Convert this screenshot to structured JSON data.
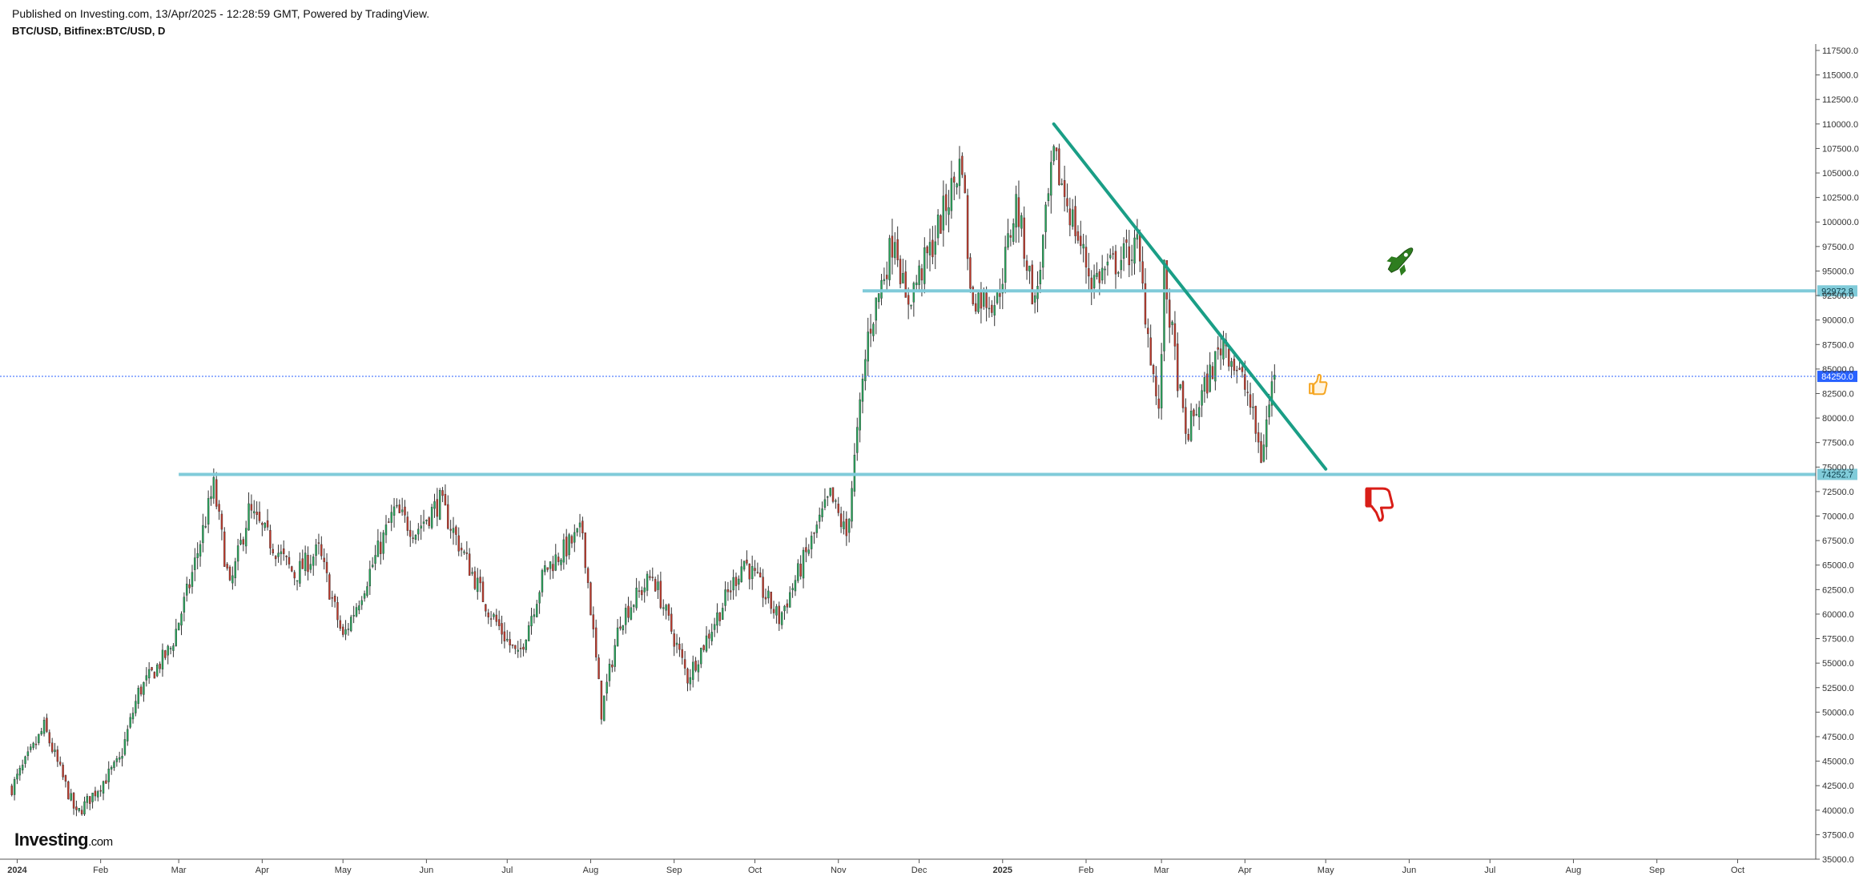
{
  "header": {
    "published": "Published on Investing.com, 13/Apr/2025 - 12:28:59 GMT, Powered by TradingView.",
    "symbol": "BTC/USD, Bitfinex:BTC/USD, D"
  },
  "logo": {
    "main": "Investing",
    "suffix": ".com"
  },
  "colors": {
    "up": "#26a65b",
    "down": "#c0392b",
    "level": "#80cbd9",
    "trendline": "#1a9e86",
    "current": "#2962ff",
    "rocket": "#2e7d1f",
    "thumbs_up": "#f5a623",
    "thumbs_down": "#d91e18"
  },
  "icons": [
    "rocket-icon",
    "thumbs-up-icon",
    "thumbs-down-icon"
  ],
  "chart_data": {
    "type": "candlestick",
    "title": "BTC/USD, Bitfinex:BTC/USD, D",
    "ylim": [
      35000,
      117500
    ],
    "yticks": [
      117500,
      115000,
      112500,
      110000,
      107500,
      105000,
      102500,
      100000,
      97500,
      95000,
      92500,
      90000,
      87500,
      85000,
      82500,
      80000,
      77500,
      75000,
      72500,
      70000,
      67500,
      65000,
      62500,
      60000,
      57500,
      55000,
      52500,
      50000,
      47500,
      45000,
      42500,
      40000,
      37500,
      35000
    ],
    "ytick_labels": [
      "117500.0",
      "115000.0",
      "112500.0",
      "110000.0",
      "107500.0",
      "105000.0",
      "102500.0",
      "100000.0",
      "97500.0",
      "95000.0",
      "92500.0",
      "90000.0",
      "87500.0",
      "85000.0",
      "82500.0",
      "80000.0",
      "77500.0",
      "75000.0",
      "72500.0",
      "70000.0",
      "67500.0",
      "65000.0",
      "62500.0",
      "60000.0",
      "57500.0",
      "55000.0",
      "52500.0",
      "50000.0",
      "47500.0",
      "45000.0",
      "42500.0",
      "40000.0",
      "37500.0",
      "35000.0"
    ],
    "x_start": "2023-12-28",
    "x_end": "2025-10-30",
    "x_ticks": [
      {
        "label": "2024",
        "date": "2024-01-01",
        "bold": true
      },
      {
        "label": "Feb",
        "date": "2024-02-01"
      },
      {
        "label": "Mar",
        "date": "2024-03-01"
      },
      {
        "label": "Apr",
        "date": "2024-04-01"
      },
      {
        "label": "May",
        "date": "2024-05-01"
      },
      {
        "label": "Jun",
        "date": "2024-06-01"
      },
      {
        "label": "Jul",
        "date": "2024-07-01"
      },
      {
        "label": "Aug",
        "date": "2024-08-01"
      },
      {
        "label": "Sep",
        "date": "2024-09-01"
      },
      {
        "label": "Oct",
        "date": "2024-10-01"
      },
      {
        "label": "Nov",
        "date": "2024-11-01"
      },
      {
        "label": "Dec",
        "date": "2024-12-01"
      },
      {
        "label": "2025",
        "date": "2025-01-01",
        "bold": true
      },
      {
        "label": "Feb",
        "date": "2025-02-01"
      },
      {
        "label": "Mar",
        "date": "2025-03-01"
      },
      {
        "label": "Apr",
        "date": "2025-04-01"
      },
      {
        "label": "May",
        "date": "2025-05-01"
      },
      {
        "label": "Jun",
        "date": "2025-06-01"
      },
      {
        "label": "Jul",
        "date": "2025-07-01"
      },
      {
        "label": "Aug",
        "date": "2025-08-01"
      },
      {
        "label": "Sep",
        "date": "2025-09-01"
      },
      {
        "label": "Oct",
        "date": "2025-10-01"
      }
    ],
    "price_path": [
      [
        "2023-12-30",
        42300
      ],
      [
        "2024-01-08",
        46800
      ],
      [
        "2024-01-11",
        48500
      ],
      [
        "2024-01-23",
        39500
      ],
      [
        "2024-02-08",
        45000
      ],
      [
        "2024-02-15",
        52000
      ],
      [
        "2024-02-27",
        56500
      ],
      [
        "2024-03-05",
        63000
      ],
      [
        "2024-03-14",
        73000
      ],
      [
        "2024-03-20",
        62500
      ],
      [
        "2024-03-27",
        70500
      ],
      [
        "2024-04-13",
        64000
      ],
      [
        "2024-04-22",
        66500
      ],
      [
        "2024-05-01",
        57500
      ],
      [
        "2024-05-20",
        70500
      ],
      [
        "2024-05-28",
        68500
      ],
      [
        "2024-06-06",
        71500
      ],
      [
        "2024-06-24",
        60500
      ],
      [
        "2024-07-05",
        55500
      ],
      [
        "2024-07-15",
        64500
      ],
      [
        "2024-07-29",
        68500
      ],
      [
        "2024-08-05",
        50000
      ],
      [
        "2024-08-12",
        59500
      ],
      [
        "2024-08-24",
        64000
      ],
      [
        "2024-09-06",
        53500
      ],
      [
        "2024-09-27",
        65500
      ],
      [
        "2024-10-10",
        59500
      ],
      [
        "2024-10-29",
        72000
      ],
      [
        "2024-11-04",
        68000
      ],
      [
        "2024-11-12",
        88500
      ],
      [
        "2024-11-22",
        99000
      ],
      [
        "2024-11-26",
        91500
      ],
      [
        "2024-12-05",
        97000
      ],
      [
        "2024-12-17",
        106500
      ],
      [
        "2024-12-20",
        92500
      ],
      [
        "2024-12-30",
        92000
      ],
      [
        "2025-01-06",
        102000
      ],
      [
        "2025-01-13",
        91500
      ],
      [
        "2025-01-20",
        106500
      ],
      [
        "2025-02-03",
        94000
      ],
      [
        "2025-02-20",
        97500
      ],
      [
        "2025-02-28",
        80000
      ],
      [
        "2025-03-02",
        94500
      ],
      [
        "2025-03-10",
        78000
      ],
      [
        "2025-03-24",
        88000
      ],
      [
        "2025-04-02",
        82500
      ],
      [
        "2025-04-07",
        76000
      ],
      [
        "2025-04-12",
        85000
      ]
    ],
    "last_price": 84250.0,
    "horizontal_levels": [
      {
        "value": 92972.8,
        "label": "92972.8",
        "start": "2024-11-10"
      },
      {
        "value": 74252.7,
        "label": "74252.7",
        "start": "2024-03-01"
      }
    ],
    "trendline": {
      "start": [
        "2025-01-20",
        110000
      ],
      "end": [
        "2025-05-01",
        74800
      ]
    },
    "annotations": [
      {
        "icon": "rocket-icon",
        "date": "2025-05-29",
        "value": 96000
      },
      {
        "icon": "thumbs-up-icon",
        "date": "2025-04-28",
        "value": 83500
      },
      {
        "icon": "thumbs-down-icon",
        "date": "2025-05-21",
        "value": 71500
      }
    ]
  }
}
